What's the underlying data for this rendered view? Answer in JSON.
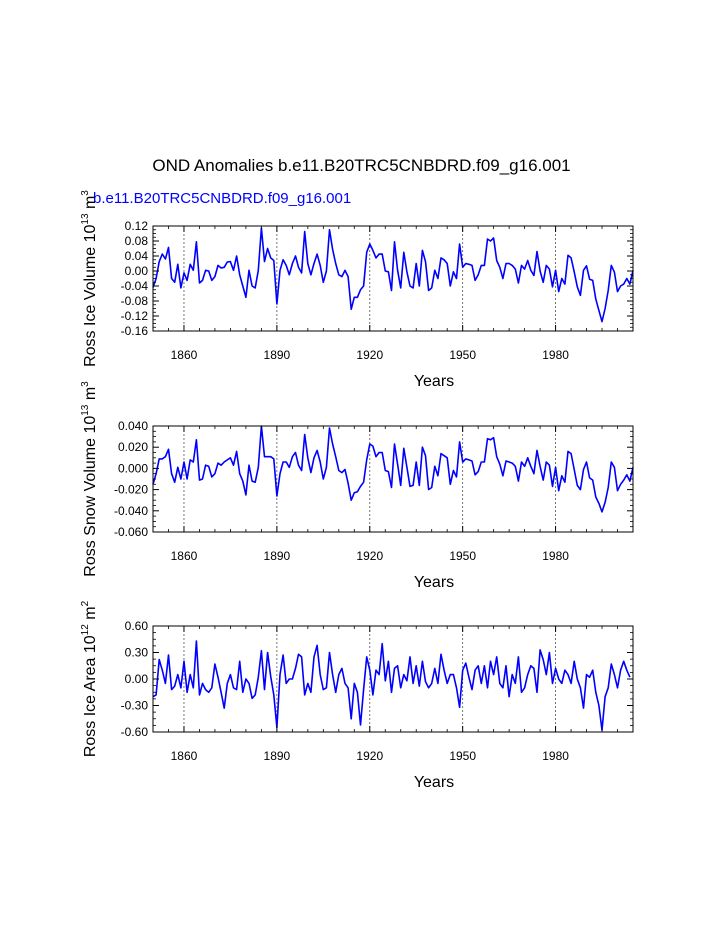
{
  "figure": {
    "title": "OND Anomalies b.e11.B20TRC5CNBDRD.f09_g16.001",
    "subtitle": "b.e11.B20TRC5CNBDRD.f09_g16.001",
    "line_color": "#0000ff"
  },
  "chart_data": [
    {
      "type": "line",
      "name": "ross-ice-volume",
      "ylabel_prefix": "Ross Ice Volume 10",
      "ylabel_exp": "13",
      "ylabel_unit": " m",
      "ylabel_unit_exp": "3",
      "xlabel": "Years",
      "xlim": [
        1850,
        2005
      ],
      "ylim": [
        -0.16,
        0.12
      ],
      "yticks": [
        "0.12",
        "0.08",
        "0.04",
        "0.00",
        "-0.04",
        "-0.08",
        "-0.12",
        "-0.16"
      ],
      "xticks": [
        "1860",
        "1890",
        "1920",
        "1950",
        "1980"
      ],
      "series": [
        {
          "name": "b.e11.B20TRC5CNBDRD.f09_g16.001",
          "x_start": 1850,
          "values": [
            -0.044,
            -0.02,
            0.025,
            0.045,
            0.032,
            0.063,
            -0.02,
            -0.03,
            0.018,
            -0.045,
            -0.005,
            -0.025,
            0.018,
            0.002,
            0.078,
            -0.032,
            -0.025,
            0.002,
            0.0,
            -0.025,
            -0.015,
            0.015,
            0.008,
            0.01,
            0.024,
            0.025,
            0.002,
            0.04,
            -0.01,
            -0.04,
            -0.07,
            0.002,
            -0.04,
            -0.045,
            0.002,
            0.115,
            0.025,
            0.06,
            0.035,
            0.028,
            -0.088,
            0.002,
            0.03,
            0.015,
            -0.01,
            0.02,
            0.04,
            0.01,
            -0.005,
            0.105,
            0.02,
            -0.01,
            0.02,
            0.045,
            0.015,
            -0.03,
            0.0,
            0.11,
            0.058,
            0.02,
            -0.01,
            -0.015,
            0.002,
            -0.015,
            -0.102,
            -0.07,
            -0.07,
            -0.05,
            -0.04,
            0.05,
            0.072,
            0.055,
            0.035,
            0.045,
            0.045,
            0.0,
            -0.002,
            -0.052,
            0.078,
            0.002,
            -0.045,
            0.05,
            -0.002,
            -0.04,
            -0.045,
            0.02,
            -0.04,
            0.055,
            0.025,
            -0.052,
            -0.045,
            0.002,
            -0.02,
            0.035,
            0.03,
            0.02,
            -0.04,
            -0.002,
            -0.02,
            0.072,
            0.01,
            0.02,
            0.018,
            0.015,
            -0.025,
            -0.01,
            0.015,
            0.015,
            0.085,
            0.08,
            0.088,
            0.028,
            0.01,
            -0.02,
            0.02,
            0.02,
            0.015,
            0.005,
            -0.032,
            0.015,
            0.005,
            0.028,
            0.002,
            -0.012,
            0.052,
            0.0,
            -0.03,
            0.015,
            0.005,
            -0.042,
            0.002,
            -0.055,
            -0.02,
            -0.035,
            0.042,
            0.035,
            -0.002,
            -0.042,
            -0.065,
            0.002,
            0.014,
            -0.022,
            -0.025,
            -0.075,
            -0.105,
            -0.135,
            -0.1,
            -0.052,
            0.015,
            -0.003,
            -0.055,
            -0.04,
            -0.035,
            -0.02,
            -0.035,
            0.002
          ]
        }
      ]
    },
    {
      "type": "line",
      "name": "ross-snow-volume",
      "ylabel_prefix": "Ross Snow Volume 10",
      "ylabel_exp": "13",
      "ylabel_unit": " m",
      "ylabel_unit_exp": "3",
      "xlabel": "Years",
      "xlim": [
        1850,
        2005
      ],
      "ylim": [
        -0.06,
        0.04
      ],
      "yticks": [
        "0.040",
        "0.020",
        "0.000",
        "-0.020",
        "-0.040",
        "-0.060"
      ],
      "xticks": [
        "1860",
        "1890",
        "1920",
        "1950",
        "1980"
      ],
      "series": [
        {
          "name": "b.e11.B20TRC5CNBDRD.f09_g16.001",
          "x_start": 1850,
          "values": [
            -0.015,
            -0.005,
            0.009,
            0.009,
            0.011,
            0.018,
            -0.005,
            -0.013,
            0.001,
            -0.01,
            0.006,
            -0.01,
            0.008,
            0.006,
            0.027,
            -0.011,
            -0.01,
            0.003,
            0.002,
            -0.008,
            -0.005,
            0.005,
            0.003,
            0.006,
            0.008,
            0.01,
            0.003,
            0.016,
            -0.005,
            -0.012,
            -0.025,
            0.003,
            -0.012,
            -0.013,
            0.001,
            0.04,
            0.011,
            0.011,
            0.011,
            0.009,
            -0.026,
            -0.005,
            0.006,
            0.006,
            0.001,
            0.011,
            0.015,
            0.003,
            -0.002,
            0.032,
            0.01,
            -0.004,
            0.01,
            0.017,
            0.006,
            -0.01,
            0.001,
            0.038,
            0.023,
            0.011,
            -0.002,
            -0.004,
            -0.001,
            -0.014,
            -0.03,
            -0.023,
            -0.022,
            -0.017,
            -0.013,
            0.008,
            0.023,
            0.021,
            0.011,
            0.015,
            0.015,
            -0.002,
            -0.003,
            -0.018,
            0.023,
            0.004,
            -0.016,
            0.019,
            0.001,
            -0.017,
            -0.016,
            0.006,
            -0.016,
            0.02,
            0.012,
            -0.02,
            -0.018,
            0.002,
            -0.007,
            0.014,
            0.012,
            0.01,
            -0.015,
            -0.002,
            -0.008,
            0.025,
            0.006,
            0.009,
            0.008,
            0.007,
            -0.006,
            -0.003,
            0.006,
            0.006,
            0.028,
            0.027,
            0.029,
            0.011,
            0.004,
            -0.007,
            0.007,
            0.006,
            0.005,
            0.002,
            -0.012,
            0.006,
            0.002,
            0.01,
            0.002,
            -0.005,
            0.017,
            0.002,
            -0.011,
            0.006,
            0.003,
            -0.017,
            0.001,
            -0.021,
            -0.007,
            -0.013,
            0.016,
            0.014,
            -0.001,
            -0.016,
            -0.02,
            -0.001,
            0.006,
            -0.009,
            -0.011,
            -0.027,
            -0.033,
            -0.041,
            -0.032,
            -0.018,
            0.006,
            0.001,
            -0.021,
            -0.015,
            -0.011,
            -0.006,
            -0.012,
            0.001
          ]
        }
      ]
    },
    {
      "type": "line",
      "name": "ross-ice-area",
      "ylabel_prefix": "Ross Ice Area 10",
      "ylabel_exp": "12",
      "ylabel_unit": " m",
      "ylabel_unit_exp": "2",
      "xlabel": "Years",
      "xlim": [
        1850,
        2005
      ],
      "ylim": [
        -0.6,
        0.6
      ],
      "yticks": [
        "0.60",
        "0.30",
        "0.00",
        "-0.30",
        "-0.60"
      ],
      "xticks": [
        "1860",
        "1890",
        "1920",
        "1950",
        "1980"
      ],
      "series": [
        {
          "name": "b.e11.B20TRC5CNBDRD.f09_g16.001",
          "x_start": 1850,
          "values": [
            -0.2,
            -0.18,
            0.22,
            0.1,
            -0.05,
            0.27,
            -0.12,
            -0.08,
            0.05,
            -0.1,
            0.2,
            -0.15,
            0.05,
            -0.1,
            0.43,
            -0.18,
            -0.05,
            -0.12,
            -0.15,
            -0.1,
            0.17,
            0.02,
            -0.15,
            -0.33,
            -0.05,
            0.05,
            -0.1,
            -0.12,
            0.2,
            -0.15,
            0.0,
            -0.05,
            -0.22,
            -0.18,
            0.02,
            0.32,
            -0.12,
            0.3,
            0.03,
            -0.18,
            -0.55,
            0.05,
            0.27,
            -0.05,
            0.0,
            0.0,
            0.12,
            0.28,
            0.25,
            -0.18,
            -0.05,
            -0.15,
            0.25,
            0.38,
            0.05,
            -0.12,
            -0.1,
            0.3,
            0.05,
            -0.15,
            0.05,
            0.12,
            -0.05,
            -0.1,
            -0.45,
            -0.05,
            -0.15,
            -0.52,
            -0.12,
            0.25,
            0.1,
            -0.18,
            0.1,
            0.05,
            0.4,
            -0.02,
            0.2,
            -0.15,
            0.12,
            0.15,
            -0.1,
            0.05,
            -0.02,
            0.25,
            -0.05,
            0.15,
            -0.08,
            0.2,
            -0.03,
            -0.1,
            -0.05,
            0.12,
            -0.05,
            0.28,
            0.1,
            -0.05,
            0.05,
            0.05,
            -0.1,
            -0.32,
            0.1,
            0.18,
            0.02,
            -0.12,
            0.1,
            0.15,
            -0.05,
            0.15,
            -0.1,
            0.2,
            0.05,
            0.25,
            -0.05,
            -0.1,
            0.15,
            -0.2,
            0.05,
            -0.05,
            0.25,
            -0.15,
            -0.1,
            0.05,
            0.15,
            0.12,
            -0.15,
            0.33,
            0.22,
            0.05,
            0.3,
            -0.05,
            0.12,
            0.0,
            -0.05,
            0.1,
            0.05,
            -0.05,
            0.2,
            0.0,
            -0.1,
            -0.33,
            0.05,
            0.02,
            0.1,
            -0.15,
            -0.3,
            -0.58,
            -0.2,
            -0.1,
            0.17,
            0.05,
            -0.1,
            0.1,
            0.2,
            0.1,
            0.02
          ]
        }
      ]
    }
  ]
}
